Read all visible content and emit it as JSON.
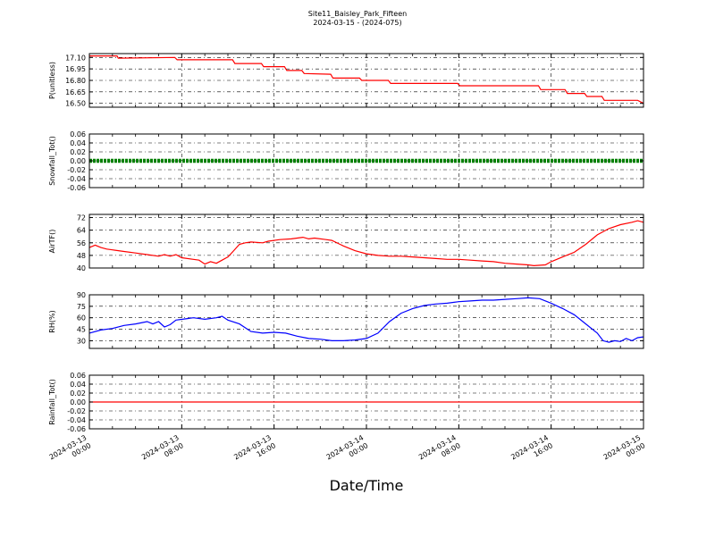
{
  "title": "Site11_Baisley_Park_Fifteen",
  "subtitle": "2024-03-15 - (2024-075)",
  "xlabel": "Date/Time",
  "chart_data": {
    "type": "line",
    "x_range": [
      "2024-03-13 00:00",
      "2024-03-15 00:00"
    ],
    "x_ticks": [
      "2024-03-13 00:00",
      "2024-03-13 08:00",
      "2024-03-13 16:00",
      "2024-03-14 00:00",
      "2024-03-14 08:00",
      "2024-03-14 16:00",
      "2024-03-15 00:00"
    ],
    "x_tick_labels": [
      [
        "2024-03-13",
        "00:00"
      ],
      [
        "2024-03-13",
        "08:00"
      ],
      [
        "2024-03-13",
        "16:00"
      ],
      [
        "2024-03-14",
        "00:00"
      ],
      [
        "2024-03-14",
        "08:00"
      ],
      [
        "2024-03-14",
        "16:00"
      ],
      [
        "2024-03-15",
        "00:00"
      ]
    ],
    "grid": true,
    "panels": [
      {
        "ylabel": "P(unitless)",
        "ylim": [
          16.45,
          17.15
        ],
        "yticks": [
          17.1,
          16.95,
          16.8,
          16.65,
          16.5
        ],
        "tick_decimals": 2,
        "color": "#ff0000",
        "style": "line",
        "points": [
          [
            0,
            17.12
          ],
          [
            2.4,
            17.12
          ],
          [
            2.5,
            17.09
          ],
          [
            7.4,
            17.1
          ],
          [
            7.6,
            17.07
          ],
          [
            12.4,
            17.07
          ],
          [
            12.6,
            17.02
          ],
          [
            14.9,
            17.02
          ],
          [
            15.1,
            16.98
          ],
          [
            16.9,
            16.98
          ],
          [
            17.1,
            16.93
          ],
          [
            18.4,
            16.93
          ],
          [
            18.6,
            16.89
          ],
          [
            20.9,
            16.88
          ],
          [
            21.1,
            16.83
          ],
          [
            23.4,
            16.83
          ],
          [
            23.6,
            16.8
          ],
          [
            25.9,
            16.8
          ],
          [
            26.1,
            16.76
          ],
          [
            31.9,
            16.76
          ],
          [
            32.1,
            16.73
          ],
          [
            38.9,
            16.73
          ],
          [
            39.1,
            16.68
          ],
          [
            41.2,
            16.68
          ],
          [
            41.4,
            16.63
          ],
          [
            42.9,
            16.63
          ],
          [
            43.1,
            16.59
          ],
          [
            44.4,
            16.59
          ],
          [
            44.6,
            16.54
          ],
          [
            47.5,
            16.54
          ],
          [
            48,
            16.5
          ]
        ]
      },
      {
        "ylabel": "Snowfall_Tot()",
        "ylim": [
          -0.06,
          0.06
        ],
        "yticks": [
          0.06,
          0.04,
          0.02,
          0.0,
          -0.02,
          -0.04,
          -0.06
        ],
        "tick_decimals": 2,
        "color": "#008000",
        "style": "markers",
        "points": [
          [
            0,
            0
          ],
          [
            48,
            0
          ]
        ]
      },
      {
        "ylabel": "AirTF()",
        "ylim": [
          40,
          74
        ],
        "yticks": [
          72,
          64,
          56,
          48,
          40
        ],
        "tick_decimals": 0,
        "color": "#ff0000",
        "style": "line",
        "points": [
          [
            0,
            53
          ],
          [
            0.5,
            54.5
          ],
          [
            1,
            53
          ],
          [
            1.5,
            52
          ],
          [
            2,
            51.5
          ],
          [
            3,
            50.5
          ],
          [
            4,
            49.5
          ],
          [
            5,
            48.5
          ],
          [
            6,
            47.5
          ],
          [
            6.5,
            48.5
          ],
          [
            7,
            47.5
          ],
          [
            7.5,
            48.5
          ],
          [
            8,
            46.5
          ],
          [
            9,
            45.5
          ],
          [
            9.5,
            45
          ],
          [
            10,
            42.5
          ],
          [
            10.5,
            44
          ],
          [
            11,
            43
          ],
          [
            11.5,
            45
          ],
          [
            12,
            47
          ],
          [
            12.5,
            51
          ],
          [
            13,
            55
          ],
          [
            13.5,
            56
          ],
          [
            14,
            56.5
          ],
          [
            15,
            56
          ],
          [
            15.5,
            57
          ],
          [
            16.5,
            58
          ],
          [
            17.5,
            58.5
          ],
          [
            18.5,
            59.5
          ],
          [
            19,
            58.5
          ],
          [
            19.5,
            59
          ],
          [
            20.5,
            58
          ],
          [
            21,
            57.5
          ],
          [
            22,
            54
          ],
          [
            23,
            51
          ],
          [
            24,
            49
          ],
          [
            25,
            48
          ],
          [
            26,
            47.5
          ],
          [
            27,
            47.5
          ],
          [
            28,
            47
          ],
          [
            29,
            46.5
          ],
          [
            30,
            46
          ],
          [
            31,
            45.5
          ],
          [
            32,
            45.5
          ],
          [
            33,
            45
          ],
          [
            34,
            44.5
          ],
          [
            35,
            44
          ],
          [
            36,
            43
          ],
          [
            37,
            42.5
          ],
          [
            38,
            42
          ],
          [
            38.5,
            41.5
          ],
          [
            39.5,
            42
          ],
          [
            40,
            44
          ],
          [
            41,
            47
          ],
          [
            42,
            50
          ],
          [
            43,
            55
          ],
          [
            44,
            61
          ],
          [
            45,
            65
          ],
          [
            46,
            67.5
          ],
          [
            47,
            69
          ],
          [
            47.5,
            70
          ],
          [
            48,
            69
          ]
        ]
      },
      {
        "ylabel": "RH(%)",
        "ylim": [
          20,
          90
        ],
        "yticks": [
          90,
          75,
          60,
          45,
          30
        ],
        "tick_decimals": 0,
        "color": "#0000ff",
        "style": "line",
        "points": [
          [
            0,
            40
          ],
          [
            1,
            44
          ],
          [
            2,
            46
          ],
          [
            3,
            50
          ],
          [
            4,
            52
          ],
          [
            5,
            55
          ],
          [
            5.5,
            52
          ],
          [
            6,
            55
          ],
          [
            6.5,
            48
          ],
          [
            7,
            51
          ],
          [
            7.5,
            57
          ],
          [
            8.5,
            59
          ],
          [
            9,
            60
          ],
          [
            10,
            58
          ],
          [
            11,
            60
          ],
          [
            11.5,
            62
          ],
          [
            12,
            57
          ],
          [
            13,
            52
          ],
          [
            14,
            42
          ],
          [
            15,
            40
          ],
          [
            16,
            41
          ],
          [
            17,
            40
          ],
          [
            18,
            36
          ],
          [
            19,
            33
          ],
          [
            20,
            32
          ],
          [
            21,
            30
          ],
          [
            22,
            30
          ],
          [
            23,
            31
          ],
          [
            24,
            33
          ],
          [
            25,
            40
          ],
          [
            26,
            55
          ],
          [
            27,
            66
          ],
          [
            28,
            72
          ],
          [
            29,
            76
          ],
          [
            30,
            78
          ],
          [
            31,
            79
          ],
          [
            32,
            81
          ],
          [
            33,
            82
          ],
          [
            34,
            83
          ],
          [
            35,
            83
          ],
          [
            36,
            84
          ],
          [
            37,
            85
          ],
          [
            38,
            86
          ],
          [
            39,
            85
          ],
          [
            40,
            79
          ],
          [
            41,
            72
          ],
          [
            42,
            64
          ],
          [
            43,
            52
          ],
          [
            44,
            40
          ],
          [
            44.5,
            30
          ],
          [
            45,
            28
          ],
          [
            45.5,
            30
          ],
          [
            46,
            29
          ],
          [
            46.5,
            33
          ],
          [
            47,
            30
          ],
          [
            47.5,
            34
          ],
          [
            48,
            35
          ]
        ]
      },
      {
        "ylabel": "Rainfall_Tot()",
        "ylim": [
          -0.06,
          0.06
        ],
        "yticks": [
          0.06,
          0.04,
          0.02,
          0.0,
          -0.02,
          -0.04,
          -0.06
        ],
        "tick_decimals": 2,
        "color": "#ff0000",
        "style": "line",
        "points": [
          [
            0,
            0
          ],
          [
            48,
            0
          ]
        ]
      }
    ]
  }
}
